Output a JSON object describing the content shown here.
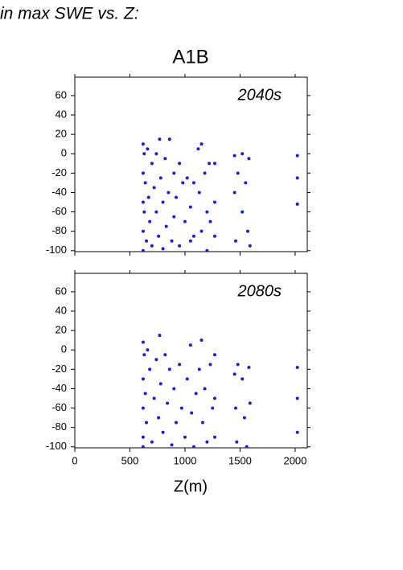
{
  "title": "in max SWE vs. Z:",
  "subtitle": "A1B",
  "x_label": "Z(m)",
  "chart_data": [
    {
      "type": "scatter",
      "annotation": "2040s",
      "color": "#1f1fbf",
      "show_xtick_labels": false,
      "xlim": [
        0,
        2110
      ],
      "ylim": [
        -101,
        79
      ],
      "xticks": [
        0,
        500,
        1000,
        1500,
        2000
      ],
      "yticks": [
        -100,
        -80,
        -60,
        -40,
        -20,
        0,
        20,
        40,
        60
      ],
      "x": [
        620,
        620,
        620,
        620,
        620,
        630,
        630,
        640,
        650,
        660,
        670,
        680,
        700,
        700,
        720,
        740,
        740,
        760,
        770,
        780,
        800,
        800,
        820,
        830,
        850,
        860,
        880,
        900,
        900,
        920,
        950,
        950,
        980,
        1000,
        1020,
        1050,
        1050,
        1080,
        1080,
        1120,
        1130,
        1150,
        1150,
        1180,
        1200,
        1200,
        1220,
        1230,
        1270,
        1270,
        1270,
        1450,
        1450,
        1460,
        1480,
        1520,
        1520,
        1550,
        1570,
        1580,
        1590,
        2020,
        2020,
        2020
      ],
      "y": [
        10,
        -20,
        -50,
        -80,
        -100,
        0,
        -60,
        -30,
        -90,
        5,
        -45,
        -70,
        -10,
        -95,
        -35,
        0,
        -60,
        -85,
        15,
        -25,
        -50,
        -98,
        -5,
        -75,
        -40,
        15,
        -90,
        -20,
        -65,
        -45,
        -10,
        -95,
        -30,
        -70,
        -25,
        -55,
        -90,
        -30,
        -85,
        5,
        -40,
        10,
        -80,
        -20,
        -60,
        -100,
        -10,
        -70,
        -10,
        -50,
        -85,
        -2,
        -40,
        -90,
        -20,
        0,
        -60,
        -30,
        -80,
        -5,
        -95,
        -2,
        -25,
        -52
      ]
    },
    {
      "type": "scatter",
      "annotation": "2080s",
      "color": "#1f1fbf",
      "show_xtick_labels": true,
      "xlim": [
        0,
        2110
      ],
      "ylim": [
        -101,
        79
      ],
      "xticks": [
        0,
        500,
        1000,
        1500,
        2000
      ],
      "yticks": [
        -100,
        -80,
        -60,
        -40,
        -20,
        0,
        20,
        40,
        60
      ],
      "x": [
        620,
        620,
        620,
        620,
        620,
        630,
        640,
        650,
        660,
        680,
        700,
        720,
        740,
        760,
        770,
        780,
        800,
        820,
        840,
        860,
        880,
        900,
        920,
        950,
        970,
        1000,
        1020,
        1050,
        1060,
        1080,
        1100,
        1130,
        1150,
        1160,
        1180,
        1200,
        1230,
        1250,
        1270,
        1270,
        1270,
        1450,
        1460,
        1470,
        1480,
        1520,
        1540,
        1560,
        1580,
        1590,
        2020,
        2020,
        2020
      ],
      "y": [
        8,
        -30,
        -60,
        -90,
        -100,
        -5,
        -45,
        -75,
        0,
        -20,
        -95,
        -50,
        -10,
        -70,
        15,
        -35,
        -85,
        -5,
        -55,
        -20,
        -98,
        -40,
        -75,
        -15,
        -60,
        -90,
        -30,
        5,
        -65,
        -100,
        -45,
        -20,
        10,
        -75,
        -40,
        -95,
        -15,
        -60,
        -5,
        -50,
        -90,
        -25,
        -60,
        -95,
        -15,
        -30,
        -70,
        -100,
        -18,
        -55,
        -18,
        -50,
        -85
      ]
    }
  ]
}
